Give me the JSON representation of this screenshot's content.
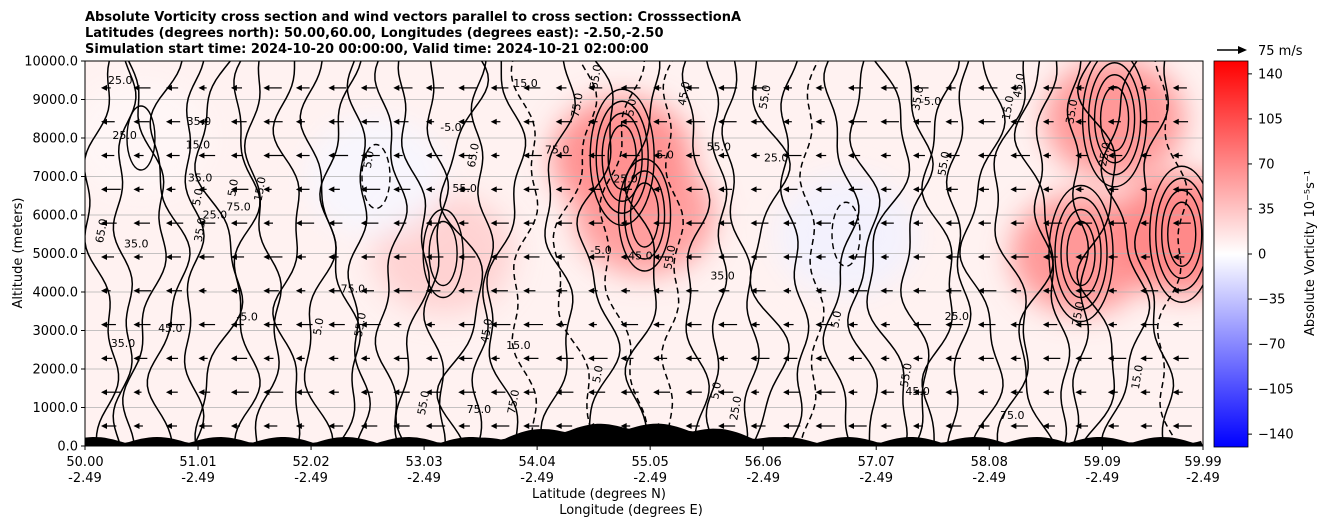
{
  "chart_data": {
    "type": "contour",
    "title_lines": [
      "Absolute Vorticity cross section and wind vectors parallel to cross section: CrosssectionA",
      "Latitudes (degrees north): 50.00,60.00, Longitudes (degrees east): -2.50,-2.50",
      "Simulation start time: 2024-10-20 00:00:00, Valid time: 2024-10-21 02:00:00"
    ],
    "ylabel": "Altitude (meters)",
    "xlabel_lat": "Latitude (degrees N)",
    "xlabel_lon": "Longitude (degrees E)",
    "ylim": [
      0,
      10000
    ],
    "xlim": [
      50.0,
      59.99
    ],
    "y_ticks": [
      "0.0",
      "1000.0",
      "2000.0",
      "3000.0",
      "4000.0",
      "5000.0",
      "6000.0",
      "7000.0",
      "8000.0",
      "9000.0",
      "10000.0"
    ],
    "x_ticks": [
      {
        "lat": "50.00",
        "lon": "-2.49"
      },
      {
        "lat": "51.01",
        "lon": "-2.49"
      },
      {
        "lat": "52.02",
        "lon": "-2.49"
      },
      {
        "lat": "53.03",
        "lon": "-2.49"
      },
      {
        "lat": "54.04",
        "lon": "-2.49"
      },
      {
        "lat": "55.05",
        "lon": "-2.49"
      },
      {
        "lat": "56.06",
        "lon": "-2.49"
      },
      {
        "lat": "57.07",
        "lon": "-2.49"
      },
      {
        "lat": "58.08",
        "lon": "-2.49"
      },
      {
        "lat": "59.09",
        "lon": "-2.49"
      },
      {
        "lat": "59.99",
        "lon": "-2.49"
      }
    ],
    "grid": "horizontal",
    "colorbar": {
      "label": "Absolute Vorticity 10⁻⁵s⁻¹",
      "range": [
        -150,
        150
      ],
      "ticks": [
        "140",
        "105",
        "70",
        "35",
        "0",
        "−35",
        "−70",
        "−105",
        "−140"
      ],
      "tick_values": [
        140,
        105,
        70,
        35,
        0,
        -35,
        -70,
        -105,
        -140
      ],
      "colormap": "bwr",
      "colors": {
        "low": "#0000ff",
        "mid": "#ffffff",
        "high": "#ff0000"
      }
    },
    "quiver_key": {
      "label": "75 m/s",
      "value": 75
    },
    "contour_levels_labeled": [
      "5.0",
      "15.0",
      "25.0",
      "35.0",
      "45.0",
      "55.0",
      "65.0",
      "75.0",
      "-5.0"
    ],
    "vorticity_features": [
      {
        "lat": 54.8,
        "alt": 7500,
        "value": 75
      },
      {
        "lat": 55.0,
        "alt": 6000,
        "value": 65
      },
      {
        "lat": 59.2,
        "alt": 8500,
        "value": 70
      },
      {
        "lat": 59.8,
        "alt": 5500,
        "value": 80
      },
      {
        "lat": 58.9,
        "alt": 5000,
        "value": 70
      },
      {
        "lat": 53.2,
        "alt": 5000,
        "value": 30
      },
      {
        "lat": 56.8,
        "alt": 5500,
        "value": -8
      },
      {
        "lat": 52.6,
        "alt": 7000,
        "value": -5
      },
      {
        "lat": 50.5,
        "alt": 8000,
        "value": 5
      }
    ],
    "wind": {
      "direction": "toward-lower-latitude",
      "typical_speed_ms": 30
    }
  }
}
